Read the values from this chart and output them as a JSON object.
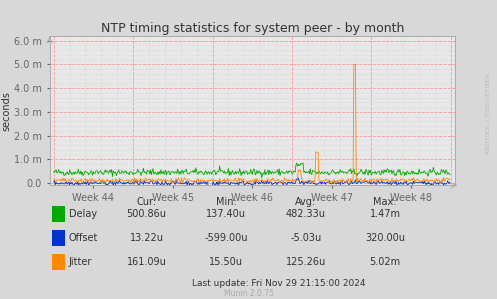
{
  "title": "NTP timing statistics for system peer - by month",
  "ylabel": "seconds",
  "bg_color": "#d8d8d8",
  "plot_bg_color": "#e8e8e8",
  "grid_color_major_h": "#ff9999",
  "grid_color_major_v": "#ff9999",
  "grid_color_minor": "#c8c8d8",
  "x_labels": [
    "Week 44",
    "Week 45",
    "Week 46",
    "Week 47",
    "Week 48"
  ],
  "ytick_labels": [
    "0.0",
    "1.0 m",
    "2.0 m",
    "3.0 m",
    "4.0 m",
    "5.0 m",
    "6.0 m"
  ],
  "ytick_vals": [
    0.0,
    0.001,
    0.002,
    0.003,
    0.004,
    0.005,
    0.006
  ],
  "ylim": [
    -0.0001,
    0.0062
  ],
  "delay_color": "#00aa00",
  "offset_color": "#0033cc",
  "jitter_color": "#ff8800",
  "stats": {
    "Delay": {
      "cur": "500.86u",
      "min": "137.40u",
      "avg": "482.33u",
      "max": "1.47m"
    },
    "Offset": {
      "cur": "13.22u",
      "min": "-599.00u",
      "avg": "-5.03u",
      "max": "320.00u"
    },
    "Jitter": {
      "cur": "161.09u",
      "min": "15.50u",
      "avg": "125.26u",
      "max": "5.02m"
    }
  },
  "last_update": "Last update: Fri Nov 29 21:15:00 2024",
  "munin_version": "Munin 2.0.75",
  "rrdtool_label": "RRDTOOL / TOBI OETIKER",
  "n_points": 500,
  "week_ticks": [
    50,
    150,
    250,
    350,
    450
  ],
  "vgrid_ticks": [
    0,
    100,
    200,
    300,
    400,
    500
  ]
}
